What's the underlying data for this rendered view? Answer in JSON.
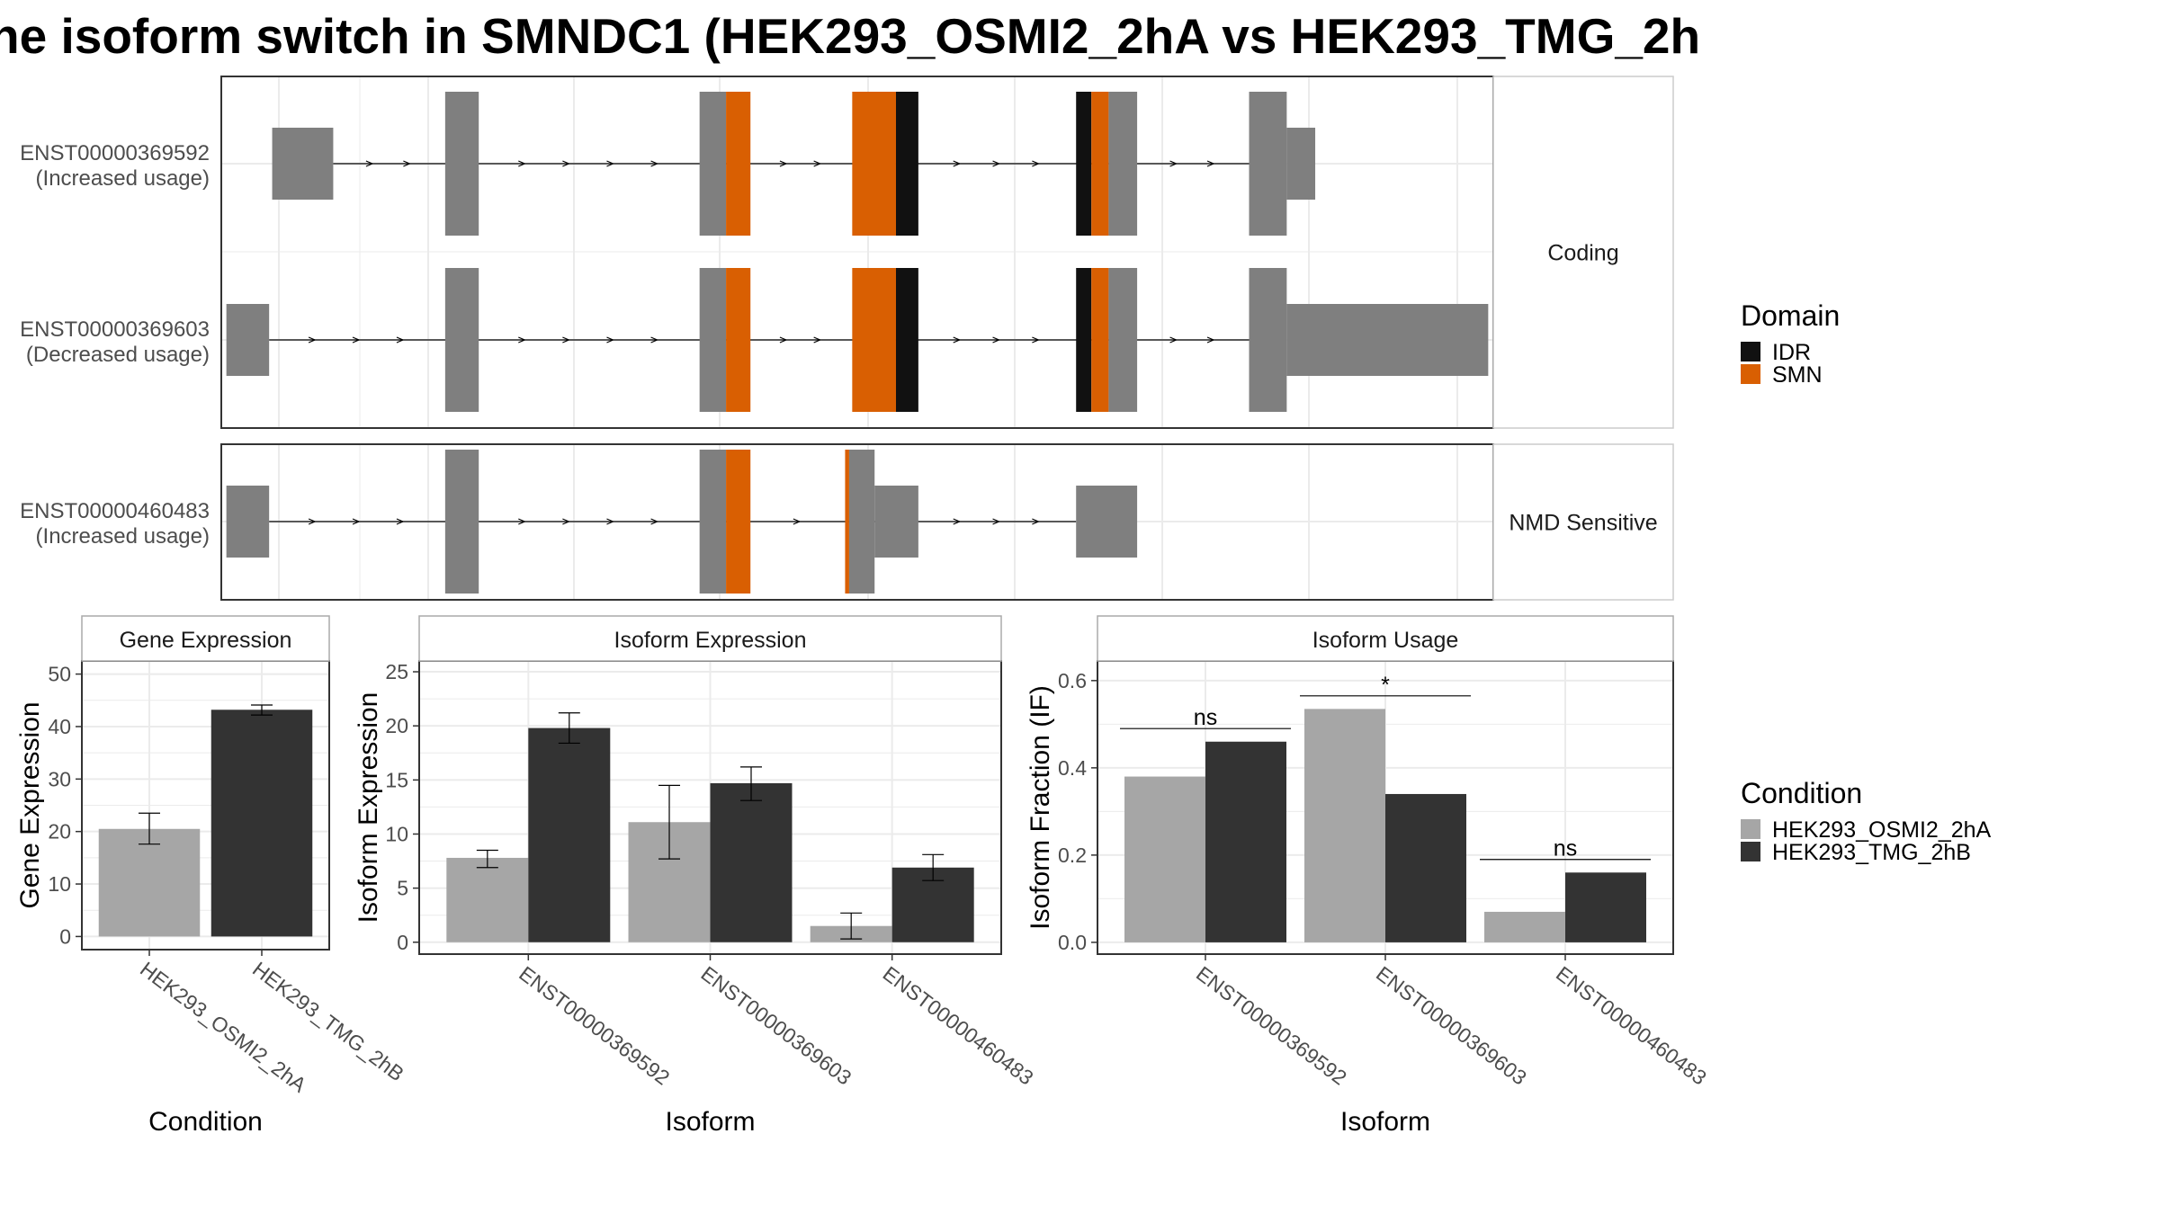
{
  "title": "ne isoform switch in SMNDC1 (HEK293_OSMI2_2hA vs HEK293_TMG_2h",
  "colors": {
    "exon": "#7f7f7f",
    "idr": "#111111",
    "smn": "#d95f02",
    "osmi": "#a6a6a6",
    "tmg": "#333333",
    "grid": "#ebebeb",
    "strip_bg": "#ffffff",
    "panel_border": "#333333"
  },
  "chart_data": [
    {
      "type": "gene-structure",
      "x_range": [
        -5,
        120
      ],
      "groups": [
        {
          "label": "Coding",
          "transcripts": [
            {
              "id": "ENST00000369592",
              "usage": "(Increased usage)",
              "exons": [
                {
                  "start": 0,
                  "end": 6,
                  "kind": "utr"
                },
                {
                  "start": 17,
                  "end": 20.3,
                  "kind": "cds"
                },
                {
                  "start": 42,
                  "end": 44.6,
                  "kind": "cds"
                },
                {
                  "start": 44.6,
                  "end": 47,
                  "kind": "smn"
                },
                {
                  "start": 57,
                  "end": 61.3,
                  "kind": "smn"
                },
                {
                  "start": 61.3,
                  "end": 63.5,
                  "kind": "idr"
                },
                {
                  "start": 79,
                  "end": 80.5,
                  "kind": "idr"
                },
                {
                  "start": 80.5,
                  "end": 82.2,
                  "kind": "smn"
                },
                {
                  "start": 82.2,
                  "end": 85,
                  "kind": "cds"
                },
                {
                  "start": 96,
                  "end": 99.7,
                  "kind": "cds"
                },
                {
                  "start": 99.7,
                  "end": 102.5,
                  "kind": "utr"
                }
              ],
              "intron": [
                6,
                96
              ]
            },
            {
              "id": "ENST00000369603",
              "usage": "(Decreased usage)",
              "exons": [
                {
                  "start": -4.5,
                  "end": -0.3,
                  "kind": "utr"
                },
                {
                  "start": 17,
                  "end": 20.3,
                  "kind": "cds"
                },
                {
                  "start": 42,
                  "end": 44.6,
                  "kind": "cds"
                },
                {
                  "start": 44.6,
                  "end": 47,
                  "kind": "smn"
                },
                {
                  "start": 57,
                  "end": 61.3,
                  "kind": "smn"
                },
                {
                  "start": 61.3,
                  "end": 63.5,
                  "kind": "idr"
                },
                {
                  "start": 79,
                  "end": 80.5,
                  "kind": "idr"
                },
                {
                  "start": 80.5,
                  "end": 82.2,
                  "kind": "smn"
                },
                {
                  "start": 82.2,
                  "end": 85,
                  "kind": "cds"
                },
                {
                  "start": 96,
                  "end": 99.7,
                  "kind": "cds"
                },
                {
                  "start": 99.7,
                  "end": 119.5,
                  "kind": "utr"
                }
              ],
              "intron": [
                -0.3,
                96
              ]
            }
          ]
        },
        {
          "label": "NMD Sensitive",
          "transcripts": [
            {
              "id": "ENST00000460483",
              "usage": "(Increased usage)",
              "exons": [
                {
                  "start": -4.5,
                  "end": -0.3,
                  "kind": "utr"
                },
                {
                  "start": 17,
                  "end": 20.3,
                  "kind": "cds"
                },
                {
                  "start": 42,
                  "end": 44.6,
                  "kind": "cds"
                },
                {
                  "start": 44.6,
                  "end": 47,
                  "kind": "smn"
                },
                {
                  "start": 56.3,
                  "end": 56.7,
                  "kind": "smn"
                },
                {
                  "start": 56.7,
                  "end": 59.2,
                  "kind": "cds"
                },
                {
                  "start": 59.2,
                  "end": 63.5,
                  "kind": "utr"
                },
                {
                  "start": 79,
                  "end": 85,
                  "kind": "utr"
                }
              ],
              "intron": [
                -0.3,
                79
              ]
            }
          ]
        }
      ],
      "legend": {
        "title": "Domain",
        "entries": [
          "IDR",
          "SMN"
        ]
      }
    },
    {
      "type": "bar",
      "strip": "Gene Expression",
      "xlabel": "Condition",
      "ylabel": "Gene Expression",
      "ylim": [
        -2.5,
        52.5
      ],
      "yticks": [
        0,
        10,
        20,
        30,
        40,
        50
      ],
      "categories": [
        "HEK293_OSMI2_2hA",
        "HEK293_TMG_2hB"
      ],
      "values": [
        20.5,
        43.2
      ],
      "errors": [
        [
          17.6,
          23.5
        ],
        [
          42.2,
          44.1
        ]
      ]
    },
    {
      "type": "bar",
      "strip": "Isoform Expression",
      "xlabel": "Isoform",
      "ylabel": "Isoform Expression",
      "ylim": [
        -1.1,
        26
      ],
      "yticks": [
        0,
        5,
        10,
        15,
        20,
        25
      ],
      "categories": [
        "ENST00000369592",
        "ENST00000369603",
        "ENST00000460483"
      ],
      "series": [
        {
          "name": "HEK293_OSMI2_2hA",
          "values": [
            7.8,
            11.1,
            1.5
          ],
          "errors": [
            [
              6.9,
              8.5
            ],
            [
              7.7,
              14.5
            ],
            [
              0.3,
              2.7
            ]
          ]
        },
        {
          "name": "HEK293_TMG_2hB",
          "values": [
            19.8,
            14.7,
            6.9
          ],
          "errors": [
            [
              18.4,
              21.2
            ],
            [
              13.1,
              16.2
            ],
            [
              5.7,
              8.1
            ]
          ]
        }
      ]
    },
    {
      "type": "bar",
      "strip": "Isoform Usage",
      "xlabel": "Isoform",
      "ylabel": "Isoform Fraction (IF)",
      "ylim": [
        -0.027,
        0.645
      ],
      "yticks": [
        0.0,
        0.2,
        0.4,
        0.6
      ],
      "ytick_labels": [
        "0.0",
        "0.2",
        "0.4",
        "0.6"
      ],
      "categories": [
        "ENST00000369592",
        "ENST00000369603",
        "ENST00000460483"
      ],
      "series": [
        {
          "name": "HEK293_OSMI2_2hA",
          "values": [
            0.38,
            0.535,
            0.07
          ]
        },
        {
          "name": "HEK293_TMG_2hB",
          "values": [
            0.46,
            0.34,
            0.16
          ]
        }
      ],
      "annotations": [
        {
          "category": "ENST00000369592",
          "label": "ns",
          "y": 0.49
        },
        {
          "category": "ENST00000369603",
          "label": "*",
          "y": 0.565
        },
        {
          "category": "ENST00000460483",
          "label": "ns",
          "y": 0.19
        }
      ]
    }
  ],
  "condition_legend": {
    "title": "Condition",
    "entries": [
      "HEK293_OSMI2_2hA",
      "HEK293_TMG_2hB"
    ]
  }
}
